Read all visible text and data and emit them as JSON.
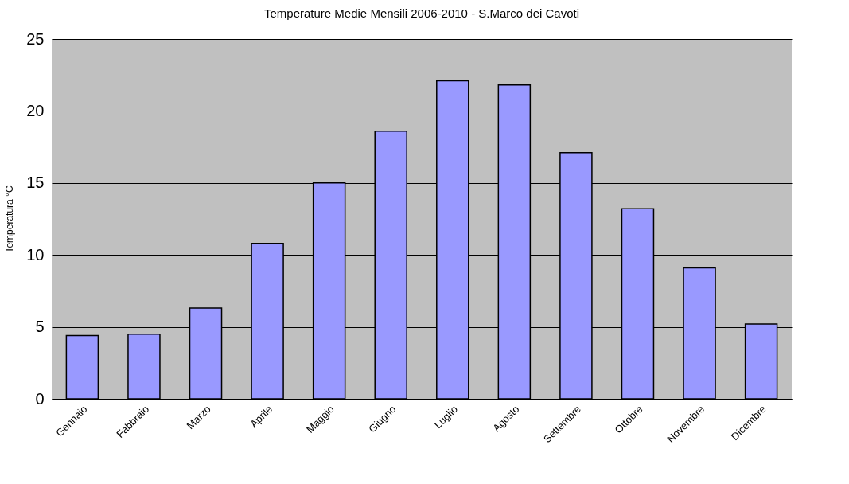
{
  "chart_data": {
    "type": "bar",
    "title": "Temperature Medie Mensili 2006-2010 - S.Marco dei Cavoti",
    "ylabel": "Temperatura °C",
    "categories": [
      "Gennaio",
      "Fabbraio",
      "Marzo",
      "Aprile",
      "Maggio",
      "Giugno",
      "Luglio",
      "Agosto",
      "Settembre",
      "Ottobre",
      "Novembre",
      "Dicembre"
    ],
    "values": [
      4.4,
      4.5,
      6.3,
      10.8,
      15.0,
      18.6,
      22.1,
      21.8,
      17.1,
      13.2,
      9.1,
      5.2
    ],
    "color": "#9999ff",
    "ylim": [
      0,
      25
    ],
    "yticks": [
      0,
      5,
      10,
      15,
      20,
      25
    ],
    "grid": "y"
  }
}
